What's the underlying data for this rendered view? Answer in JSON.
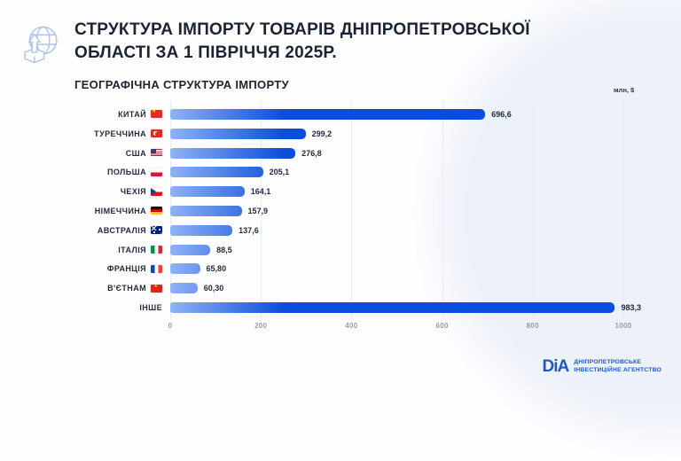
{
  "header": {
    "title_line1": "СТРУКТУРА ІМПОРТУ ТОВАРІВ ДНІПРОПЕТРОВСЬКОЇ",
    "title_line2": "ОБЛАСТІ ЗА 1 ПІВРІЧЧЯ 2025Р.",
    "subtitle": "ГЕОГРАФІЧНА СТРУКТУРА ІМПОРТУ",
    "unit_label": "млн, $"
  },
  "chart_data": {
    "type": "bar",
    "orientation": "horizontal",
    "title": "ГЕОГРАФІЧНА СТРУКТУРА ІМПОРТУ",
    "unit": "млн, $",
    "xlabel": "",
    "ylabel": "",
    "xlim": [
      0,
      1000
    ],
    "x_ticks": [
      "0",
      "200",
      "400",
      "600",
      "800",
      "1000"
    ],
    "grid": true,
    "categories": [
      "КИТАЙ",
      "ТУРЕЧЧИНА",
      "США",
      "ПОЛЬША",
      "ЧЕХІЯ",
      "НІМЕЧЧИНА",
      "АВСТРАЛІЯ",
      "ІТАЛІЯ",
      "ФРАНЦІЯ",
      "В'ЄТНАМ",
      "ІНШЕ"
    ],
    "values": [
      696.6,
      299.2,
      276.8,
      205.1,
      164.1,
      157.9,
      137.6,
      88.5,
      65.8,
      60.3,
      983.3
    ],
    "items": [
      {
        "label": "КИТАЙ",
        "flag": "cn",
        "flag_name": "china-flag-icon",
        "value": 696.6,
        "value_label": "696,6"
      },
      {
        "label": "ТУРЕЧЧИНА",
        "flag": "tr",
        "flag_name": "turkey-flag-icon",
        "value": 299.2,
        "value_label": "299,2"
      },
      {
        "label": "США",
        "flag": "us",
        "flag_name": "usa-flag-icon",
        "value": 276.8,
        "value_label": "276,8"
      },
      {
        "label": "ПОЛЬША",
        "flag": "pl",
        "flag_name": "poland-flag-icon",
        "value": 205.1,
        "value_label": "205,1"
      },
      {
        "label": "ЧЕХІЯ",
        "flag": "cz",
        "flag_name": "czechia-flag-icon",
        "value": 164.1,
        "value_label": "164,1"
      },
      {
        "label": "НІМЕЧЧИНА",
        "flag": "de",
        "flag_name": "germany-flag-icon",
        "value": 157.9,
        "value_label": "157,9"
      },
      {
        "label": "АВСТРАЛІЯ",
        "flag": "au",
        "flag_name": "australia-flag-icon",
        "value": 137.6,
        "value_label": "137,6"
      },
      {
        "label": "ІТАЛІЯ",
        "flag": "it",
        "flag_name": "italy-flag-icon",
        "value": 88.5,
        "value_label": "88,5"
      },
      {
        "label": "ФРАНЦІЯ",
        "flag": "fr",
        "flag_name": "france-flag-icon",
        "value": 65.8,
        "value_label": "65,80"
      },
      {
        "label": "В'ЄТНАМ",
        "flag": "vn",
        "flag_name": "vietnam-flag-icon",
        "value": 60.3,
        "value_label": "60,30"
      },
      {
        "label": "ІНШЕ",
        "flag": "none",
        "flag_name": "",
        "value": 983.3,
        "value_label": "983,3"
      }
    ]
  },
  "footer": {
    "logo_text": "DiA",
    "org_line1": "ДНІПРОПЕТРОВСЬКЕ",
    "org_line2": "ІНВЕСТИЦІЙНЕ АГЕНТСТВО"
  },
  "colors": {
    "bar_gradient_start": "#8fb2f4",
    "bar_gradient_end": "#0a4cdb",
    "title_text": "#1c2434",
    "axis_text": "#959dac",
    "gridline": "#e7ebf3",
    "bg_circle": "#edf1f9",
    "logo_blue": "#1b5ac6",
    "globe_icon": "#abc3ee"
  }
}
